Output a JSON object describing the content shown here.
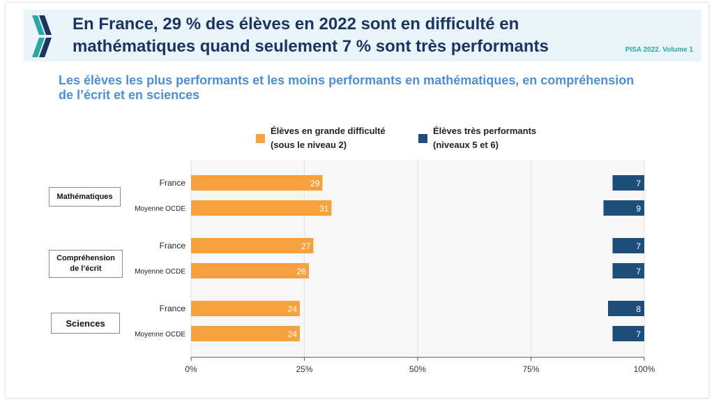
{
  "header": {
    "title": "En France, 29 % des élèves en 2022 sont en difficulté en mathématiques quand seulement 7 % sont très performants",
    "source": "PISA 2022. Volume 1"
  },
  "subtitle": "Les élèves les plus performants et les moins performants en mathématiques, en compréhension de l’écrit et en sciences",
  "legend": {
    "low": "Élèves en grande difficulté\n(sous le niveau 2)",
    "high": "Élèves très performants\n(niveaux 5 et 6)"
  },
  "groups": {
    "math": "Mathématiques",
    "reading": "Compréhension\nde l’écrit",
    "science": "Sciences"
  },
  "colors": {
    "low": "#f8a23f",
    "high": "#1e4e79",
    "header_title": "#1d3461",
    "subtitle": "#4a8fd4",
    "source": "#2aa7a5"
  },
  "chart_data": {
    "type": "bar",
    "orientation": "horizontal",
    "categories": [
      "France",
      "Moyenne OCDE",
      "France",
      "Moyenne OCDE",
      "France",
      "Moyenne OCDE"
    ],
    "groups": [
      "Mathématiques",
      "Mathématiques",
      "Compréhension de l’écrit",
      "Compréhension de l’écrit",
      "Sciences",
      "Sciences"
    ],
    "series": [
      {
        "name": "Élèves en grande difficulté (sous le niveau 2)",
        "values": [
          29,
          31,
          27,
          26,
          24,
          24
        ]
      },
      {
        "name": "Élèves très performants (niveaux 5 et 6)",
        "values": [
          7,
          9,
          7,
          7,
          8,
          7
        ]
      }
    ],
    "xlim": [
      0,
      100
    ],
    "xticks": [
      "0%",
      "25%",
      "50%",
      "75%",
      "100%"
    ],
    "grid": true,
    "legend_position": "top"
  }
}
